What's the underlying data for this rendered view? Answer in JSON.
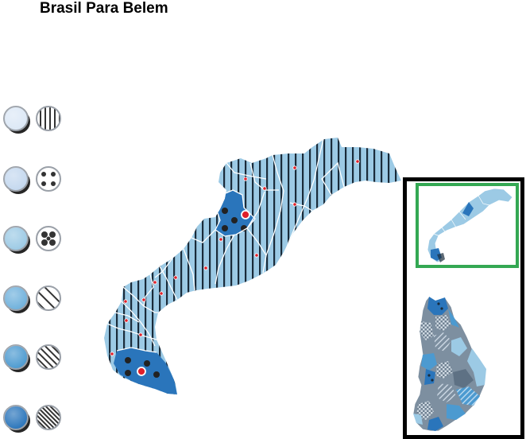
{
  "title": "Brasil Para Belem",
  "legend": {
    "swatch_colors": [
      "#dce8f6",
      "#c4d8ef",
      "#9ccae5",
      "#6fb1dc",
      "#4c9ad0",
      "#2a75bb"
    ],
    "pattern_names": [
      "vertical-stripes-icon",
      "four-dots-icon",
      "dense-dots-icon",
      "diagonal-sparse-icon",
      "diagonal-medium-icon",
      "diagonal-dense-icon"
    ]
  },
  "colors": {
    "region_fill": "#9ccae5",
    "highlight_fill": "#2a75bb",
    "stripe": "#1a2b3a",
    "border": "#ffffff",
    "marker": "#e0202a",
    "inset_frame": "#34a853"
  }
}
